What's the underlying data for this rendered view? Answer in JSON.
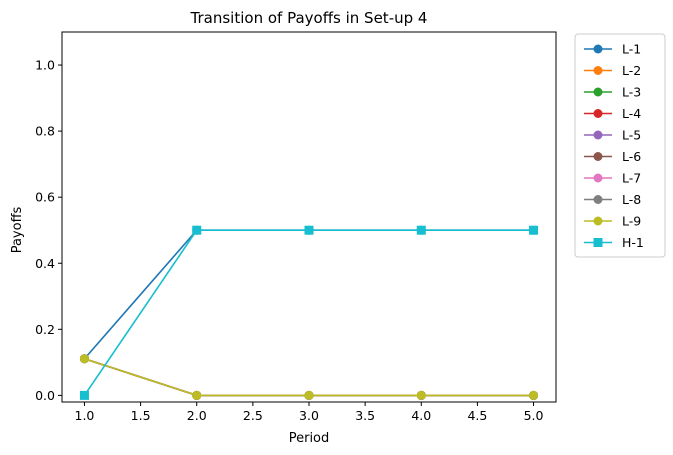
{
  "chart_data": {
    "type": "line",
    "title": "Transition of Payoffs in Set-up 4",
    "xlabel": "Period",
    "ylabel": "Payoffs",
    "x": [
      1,
      2,
      3,
      4,
      5
    ],
    "xlim": [
      0.8,
      5.2
    ],
    "ylim": [
      -0.02,
      1.1
    ],
    "xticks": [
      "1.0",
      "1.5",
      "2.0",
      "2.5",
      "3.0",
      "3.5",
      "4.0",
      "4.5",
      "5.0"
    ],
    "yticks": [
      "0.0",
      "0.2",
      "0.4",
      "0.6",
      "0.8",
      "1.0"
    ],
    "grid": false,
    "legend_position": "outside-upper-right",
    "series": [
      {
        "name": "L-1",
        "color": "#1f77b4",
        "marker": "circle",
        "values": [
          0.111,
          0.5,
          0.5,
          0.5,
          0.5
        ]
      },
      {
        "name": "L-2",
        "color": "#ff7f0e",
        "marker": "circle",
        "values": [
          0.111,
          0.0,
          0.0,
          0.0,
          0.0
        ]
      },
      {
        "name": "L-3",
        "color": "#2ca02c",
        "marker": "circle",
        "values": [
          0.111,
          0.0,
          0.0,
          0.0,
          0.0
        ]
      },
      {
        "name": "L-4",
        "color": "#d62728",
        "marker": "circle",
        "values": [
          0.111,
          0.0,
          0.0,
          0.0,
          0.0
        ]
      },
      {
        "name": "L-5",
        "color": "#9467bd",
        "marker": "circle",
        "values": [
          0.111,
          0.0,
          0.0,
          0.0,
          0.0
        ]
      },
      {
        "name": "L-6",
        "color": "#8c564b",
        "marker": "circle",
        "values": [
          0.111,
          0.0,
          0.0,
          0.0,
          0.0
        ]
      },
      {
        "name": "L-7",
        "color": "#e377c2",
        "marker": "circle",
        "values": [
          0.111,
          0.0,
          0.0,
          0.0,
          0.0
        ]
      },
      {
        "name": "L-8",
        "color": "#7f7f7f",
        "marker": "circle",
        "values": [
          0.111,
          0.0,
          0.0,
          0.0,
          0.0
        ]
      },
      {
        "name": "L-9",
        "color": "#bcbd22",
        "marker": "circle",
        "values": [
          0.111,
          0.0,
          0.0,
          0.0,
          0.0
        ]
      },
      {
        "name": "H-1",
        "color": "#17becf",
        "marker": "square",
        "values": [
          0.0,
          0.5,
          0.5,
          0.5,
          0.5
        ]
      }
    ]
  }
}
